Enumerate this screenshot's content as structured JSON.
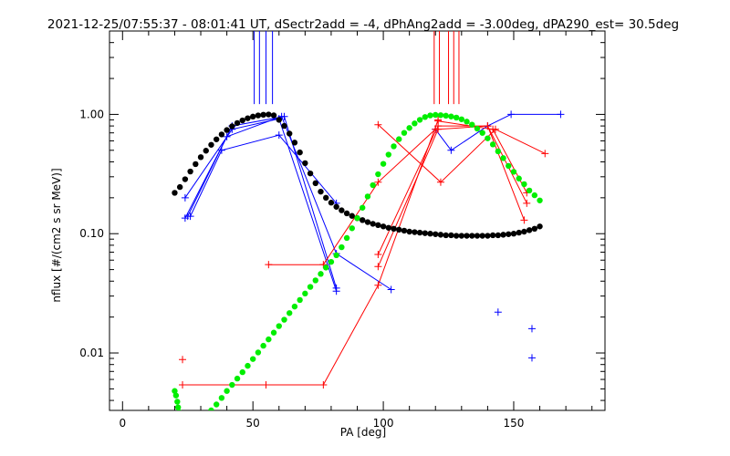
{
  "chart_data": {
    "type": "line",
    "title": "2021-12-25/07:55:37 - 08:01:41 UT, dSectr2add = -4, dPhAng2add = -3.00deg, dPA290_est=  30.5deg",
    "xlabel": "PA [deg]",
    "ylabel": "nflux [#/(cm2 s sr MeV)]",
    "xlim": [
      -5,
      185
    ],
    "ylim": [
      0.0033,
      5.0
    ],
    "yscale": "log",
    "grid": false,
    "x_ticks": [
      0,
      50,
      100,
      150
    ],
    "x_tick_labels": [
      "0",
      "50",
      "100",
      "150"
    ],
    "y_ticks": [
      0.01,
      0.1,
      1.0
    ],
    "y_tick_labels": [
      "0.01",
      "0.10",
      "1.00"
    ],
    "colors": {
      "blue": "#0000ff",
      "red": "#ff0000",
      "green": "#00ee00",
      "black": "#000000",
      "axes": "#000000"
    },
    "vertical_markers": [
      {
        "color": "#0000ff",
        "x": [
          50.5,
          52.5,
          55,
          57.5
        ]
      },
      {
        "color": "#ff0000",
        "x": [
          119.5,
          121.5,
          125,
          127,
          129
        ]
      }
    ],
    "series": [
      {
        "color": "#0000ff",
        "style": "line+plus",
        "x": [
          25,
          42,
          62,
          82
        ],
        "y": [
          0.14,
          0.8,
          0.96,
          0.035
        ]
      },
      {
        "color": "#0000ff",
        "style": "line+plus",
        "x": [
          26,
          38,
          60,
          82
        ],
        "y": [
          0.14,
          0.5,
          0.67,
          0.18
        ]
      },
      {
        "color": "#0000ff",
        "style": "line+plus",
        "x": [
          24,
          42,
          60,
          82
        ],
        "y": [
          0.2,
          0.75,
          0.92,
          0.033
        ]
      },
      {
        "color": "#0000ff",
        "style": "line+plus",
        "x": [
          24,
          40,
          61,
          82,
          103
        ],
        "y": [
          0.135,
          0.65,
          0.96,
          0.068,
          0.034
        ]
      },
      {
        "color": "#0000ff",
        "style": "line+plus",
        "x": [
          120,
          126,
          140,
          149,
          168
        ],
        "y": [
          0.75,
          0.5,
          0.8,
          1.0,
          1.0
        ]
      },
      {
        "color": "#ff0000",
        "style": "line+plus",
        "x": [
          23,
          55,
          77,
          98,
          121
        ],
        "y": [
          0.0054,
          0.0054,
          0.0054,
          0.037,
          0.9
        ]
      },
      {
        "color": "#ff0000",
        "style": "line+plus",
        "x": [
          56,
          77,
          98,
          120
        ],
        "y": [
          0.055,
          0.055,
          0.27,
          0.75
        ]
      },
      {
        "color": "#ff0000",
        "style": "line+plus",
        "x": [
          98,
          121,
          140,
          155
        ],
        "y": [
          0.053,
          0.75,
          0.8,
          0.18
        ]
      },
      {
        "color": "#ff0000",
        "style": "line+plus",
        "x": [
          98,
          121,
          140,
          154
        ],
        "y": [
          0.067,
          0.8,
          0.8,
          0.13
        ]
      },
      {
        "color": "#ff0000",
        "style": "line+plus",
        "x": [
          98,
          122,
          143,
          162
        ],
        "y": [
          0.82,
          0.27,
          0.75,
          0.47
        ]
      },
      {
        "color": "#ff0000",
        "style": "line+plus",
        "x": [
          121,
          142,
          155
        ],
        "y": [
          0.88,
          0.75,
          0.22
        ]
      },
      {
        "color": "#ff0000",
        "style": "plus",
        "x": [
          23
        ],
        "y": [
          0.0088
        ]
      },
      {
        "color": "#0000ff",
        "style": "plus",
        "x": [
          144,
          157,
          157
        ],
        "y": [
          0.022,
          0.016,
          0.0091
        ]
      },
      {
        "color": "#000000",
        "style": "dots",
        "x": [
          20,
          22,
          24,
          26,
          28,
          30,
          32,
          34,
          36,
          38,
          40,
          42,
          44,
          46,
          48,
          50,
          52,
          54,
          56,
          58,
          60,
          62,
          64,
          66,
          68,
          70,
          72,
          74,
          76,
          78,
          80,
          82,
          84,
          86,
          88,
          90,
          92,
          94,
          96,
          98,
          100,
          102,
          104,
          106,
          108,
          110,
          112,
          114,
          116,
          118,
          120,
          122,
          124,
          126,
          128,
          130,
          132,
          134,
          136,
          138,
          140,
          142,
          144,
          146,
          148,
          150,
          152,
          154,
          156,
          158,
          160
        ],
        "y": [
          0.22,
          0.246,
          0.286,
          0.332,
          0.383,
          0.438,
          0.496,
          0.556,
          0.618,
          0.679,
          0.739,
          0.795,
          0.846,
          0.89,
          0.928,
          0.958,
          0.98,
          0.993,
          0.998,
          0.982,
          0.9,
          0.8,
          0.69,
          0.58,
          0.48,
          0.39,
          0.32,
          0.265,
          0.225,
          0.2,
          0.182,
          0.168,
          0.157,
          0.148,
          0.141,
          0.135,
          0.13,
          0.125,
          0.121,
          0.118,
          0.115,
          0.112,
          0.11,
          0.108,
          0.106,
          0.104,
          0.103,
          0.102,
          0.101,
          0.1,
          0.099,
          0.098,
          0.097,
          0.097,
          0.096,
          0.096,
          0.096,
          0.096,
          0.096,
          0.096,
          0.096,
          0.097,
          0.097,
          0.098,
          0.099,
          0.1,
          0.102,
          0.104,
          0.107,
          0.11,
          0.115
        ]
      },
      {
        "color": "#00ee00",
        "style": "dots",
        "x": [
          20,
          20.5,
          21,
          21.3,
          21.6,
          34,
          36,
          38,
          40,
          42,
          44,
          46,
          48,
          50,
          52,
          54,
          56,
          58,
          60,
          62,
          64,
          66,
          68,
          70,
          72,
          74,
          76,
          78,
          80,
          82,
          84,
          86,
          88,
          90,
          92,
          94,
          96,
          98,
          100,
          102,
          104,
          106,
          108,
          110,
          112,
          114,
          116,
          118,
          120,
          122,
          124,
          126,
          128,
          130,
          132,
          134,
          136,
          138,
          140,
          142,
          144,
          146,
          148,
          150,
          152,
          154,
          156,
          158,
          160
        ],
        "y": [
          0.0048,
          0.0044,
          0.0039,
          0.0035,
          0.0032,
          0.0033,
          0.0037,
          0.0042,
          0.0048,
          0.0054,
          0.0061,
          0.0069,
          0.0078,
          0.0089,
          0.0101,
          0.0115,
          0.013,
          0.0148,
          0.0168,
          0.019,
          0.0216,
          0.0245,
          0.0278,
          0.0315,
          0.0358,
          0.0406,
          0.046,
          0.052,
          0.058,
          0.066,
          0.077,
          0.092,
          0.111,
          0.135,
          0.165,
          0.205,
          0.255,
          0.315,
          0.385,
          0.46,
          0.54,
          0.62,
          0.7,
          0.77,
          0.84,
          0.9,
          0.95,
          0.98,
          0.99,
          0.985,
          0.975,
          0.96,
          0.94,
          0.91,
          0.87,
          0.82,
          0.76,
          0.7,
          0.63,
          0.56,
          0.49,
          0.43,
          0.37,
          0.33,
          0.29,
          0.26,
          0.23,
          0.21,
          0.19
        ]
      }
    ]
  }
}
